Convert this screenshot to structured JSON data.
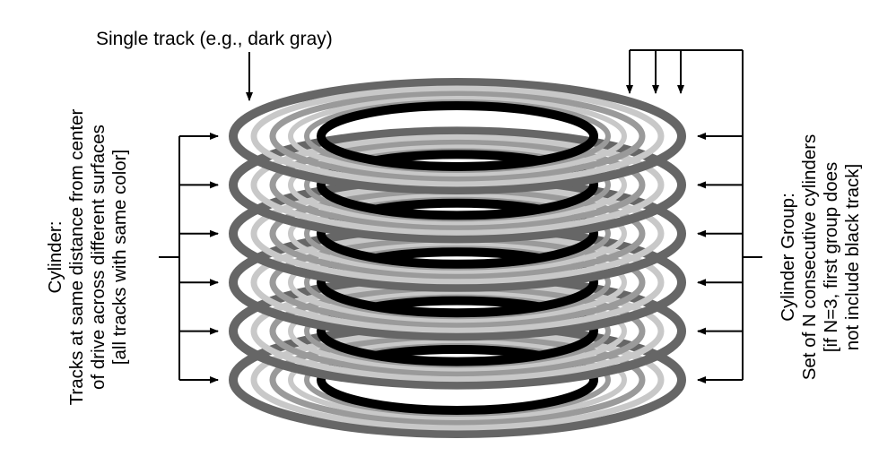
{
  "top_label": "Single track (e.g., dark gray)",
  "left_label": {
    "line1": "Cylinder:",
    "line2": "Tracks at same distance from center",
    "line3": "of drive across different surfaces",
    "line4": "[all tracks with same color]"
  },
  "right_label": {
    "line1": "Cylinder Group:",
    "line2": "Set of N consecutive cylinders",
    "line3": "[if N=3, first group does",
    "line4": "not include black track]"
  },
  "colors": {
    "dark_gray": "#666666",
    "light_gray": "#c8c8c8",
    "medium_gray": "#9a9a9a",
    "black": "#000000"
  },
  "platter_count": 6
}
